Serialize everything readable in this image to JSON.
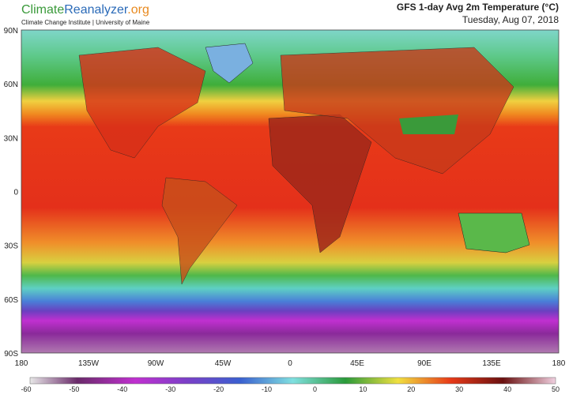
{
  "header": {
    "brand": [
      "Climate",
      "Reanalyzer",
      ".org"
    ],
    "subtitle": "Climate Change Institute | University of Maine",
    "title": "GFS 1-day Avg 2m Temperature (°C)",
    "date": "Tuesday, Aug 07, 2018"
  },
  "map": {
    "lat_labels": [
      "90N",
      "60N",
      "30N",
      "0",
      "30S",
      "60S",
      "90S"
    ],
    "lon_labels": [
      "180",
      "135W",
      "90W",
      "45W",
      "0",
      "45E",
      "90E",
      "135E",
      "180"
    ]
  },
  "colorbar": {
    "labels": [
      "-60",
      "-50",
      "-40",
      "-30",
      "-20",
      "-10",
      "0",
      "10",
      "20",
      "30",
      "40",
      "50"
    ]
  }
}
